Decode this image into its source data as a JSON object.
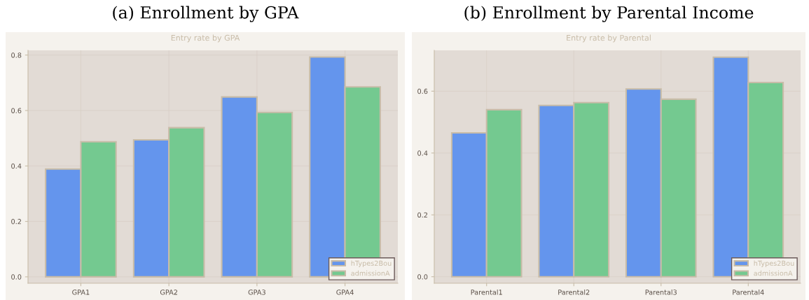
{
  "chart_data": [
    {
      "type": "bar",
      "title": "(a) Enrollment by GPA",
      "subtitle": "Entry rate by GPA",
      "categories": [
        "GPA1",
        "GPA2",
        "GPA3",
        "GPA4"
      ],
      "series": [
        {
          "name": "hTypes2Bou",
          "color": "#6495ed",
          "values": [
            0.389,
            0.494,
            0.649,
            0.793
          ]
        },
        {
          "name": "admissionA",
          "color": "#74c990",
          "values": [
            0.487,
            0.538,
            0.593,
            0.685
          ]
        }
      ],
      "ylim": [
        -0.023,
        0.817
      ],
      "yticks": [
        {
          "value": 0,
          "label": "0.0"
        },
        {
          "value": 0.2,
          "label": "0.2"
        },
        {
          "value": 0.4,
          "label": "0.4"
        },
        {
          "value": 0.6,
          "label": "0.6"
        },
        {
          "value": 0.8,
          "label": "0.8"
        }
      ],
      "grid": true,
      "legend": "bottom right"
    },
    {
      "type": "bar",
      "title": "(b) Enrollment by Parental Income",
      "subtitle": "Entry rate by Parental",
      "categories": [
        "Parental1",
        "Parental2",
        "Parental3",
        "Parental4"
      ],
      "series": [
        {
          "name": "hTypes2Bou",
          "color": "#6495ed",
          "values": [
            0.465,
            0.554,
            0.607,
            0.71
          ]
        },
        {
          "name": "admissionA",
          "color": "#74c990",
          "values": [
            0.54,
            0.563,
            0.574,
            0.628
          ]
        }
      ],
      "ylim": [
        -0.021,
        0.732
      ],
      "yticks": [
        {
          "value": 0,
          "label": "0.0"
        },
        {
          "value": 0.2,
          "label": "0.2"
        },
        {
          "value": 0.4,
          "label": "0.4"
        },
        {
          "value": 0.6,
          "label": "0.6"
        }
      ],
      "grid": true,
      "legend": "bottom right"
    }
  ]
}
